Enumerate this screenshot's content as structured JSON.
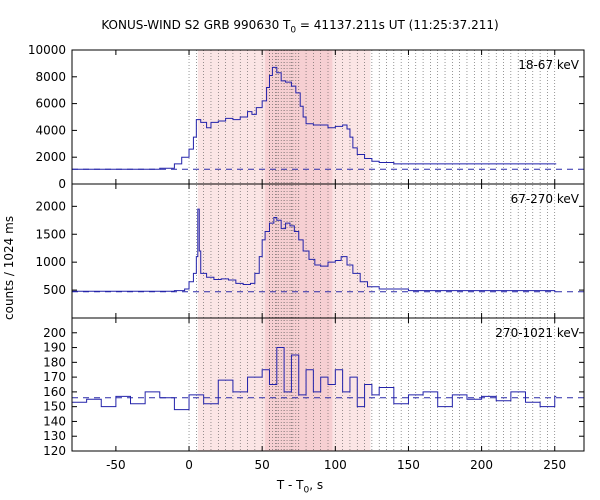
{
  "chart_data": {
    "type": "line",
    "title_prefix": "KONUS-WIND S2 GRB 990630 T",
    "title_sub": "0",
    "title_suffix": " = 41137.211s UT (11:25:37.211)",
    "ylabel": "counts / 1024 ms",
    "xlabel_prefix": "T - T",
    "xlabel_sub": "0",
    "xlabel_suffix": ", s",
    "xlim": [
      -80,
      270
    ],
    "xticks": [
      -50,
      0,
      50,
      100,
      150,
      200,
      250
    ],
    "shaded_intervals": [
      {
        "from": 6,
        "to": 124,
        "color": "#fbe5e5"
      },
      {
        "from": 52,
        "to": 98,
        "color": "#f6cfd2"
      }
    ],
    "panels": [
      {
        "name": "18-67 keV",
        "ylim": [
          0,
          10000
        ],
        "yticks": [
          0,
          2000,
          4000,
          6000,
          8000,
          10000
        ],
        "background": 1100,
        "points": [
          [
            -80,
            1100
          ],
          [
            -30,
            1100
          ],
          [
            -20,
            1180
          ],
          [
            -10,
            1500
          ],
          [
            -5,
            2000
          ],
          [
            0,
            2600
          ],
          [
            3,
            3500
          ],
          [
            5,
            4800
          ],
          [
            8,
            4600
          ],
          [
            12,
            4200
          ],
          [
            15,
            4600
          ],
          [
            20,
            4700
          ],
          [
            25,
            4900
          ],
          [
            30,
            4800
          ],
          [
            35,
            5000
          ],
          [
            40,
            5400
          ],
          [
            43,
            5200
          ],
          [
            46,
            5700
          ],
          [
            50,
            6200
          ],
          [
            53,
            7200
          ],
          [
            55,
            8100
          ],
          [
            57,
            8700
          ],
          [
            60,
            8300
          ],
          [
            63,
            7700
          ],
          [
            66,
            7600
          ],
          [
            70,
            7300
          ],
          [
            73,
            6800
          ],
          [
            76,
            5800
          ],
          [
            78,
            5000
          ],
          [
            80,
            4500
          ],
          [
            85,
            4400
          ],
          [
            90,
            4400
          ],
          [
            95,
            4200
          ],
          [
            100,
            4300
          ],
          [
            105,
            4400
          ],
          [
            108,
            4100
          ],
          [
            110,
            3500
          ],
          [
            112,
            2700
          ],
          [
            115,
            2200
          ],
          [
            120,
            1900
          ],
          [
            125,
            1700
          ],
          [
            130,
            1600
          ],
          [
            140,
            1500
          ],
          [
            160,
            1500
          ],
          [
            200,
            1500
          ],
          [
            230,
            1500
          ],
          [
            250,
            1500
          ]
        ]
      },
      {
        "name": "67-270 keV",
        "ylim": [
          0,
          2400
        ],
        "yticks": [
          500,
          1000,
          1500,
          2000
        ],
        "background": 470,
        "points": [
          [
            -80,
            480
          ],
          [
            -20,
            480
          ],
          [
            -10,
            490
          ],
          [
            -3,
            520
          ],
          [
            0,
            650
          ],
          [
            3,
            800
          ],
          [
            5,
            1100
          ],
          [
            6,
            1950
          ],
          [
            7,
            1200
          ],
          [
            8,
            800
          ],
          [
            12,
            730
          ],
          [
            17,
            690
          ],
          [
            22,
            700
          ],
          [
            27,
            680
          ],
          [
            32,
            620
          ],
          [
            37,
            600
          ],
          [
            42,
            620
          ],
          [
            45,
            800
          ],
          [
            48,
            1100
          ],
          [
            50,
            1400
          ],
          [
            52,
            1550
          ],
          [
            55,
            1700
          ],
          [
            58,
            1800
          ],
          [
            60,
            1750
          ],
          [
            63,
            1600
          ],
          [
            66,
            1700
          ],
          [
            69,
            1650
          ],
          [
            72,
            1550
          ],
          [
            75,
            1400
          ],
          [
            78,
            1200
          ],
          [
            82,
            1050
          ],
          [
            86,
            950
          ],
          [
            90,
            930
          ],
          [
            95,
            1000
          ],
          [
            100,
            1030
          ],
          [
            104,
            1100
          ],
          [
            108,
            950
          ],
          [
            112,
            800
          ],
          [
            117,
            650
          ],
          [
            122,
            560
          ],
          [
            130,
            520
          ],
          [
            150,
            490
          ],
          [
            250,
            470
          ]
        ]
      },
      {
        "name": "270-1021 keV",
        "ylim": [
          120,
          210
        ],
        "yticks": [
          120,
          130,
          140,
          150,
          160,
          170,
          180,
          190,
          200
        ],
        "background": 156,
        "points": [
          [
            -80,
            153
          ],
          [
            -70,
            155
          ],
          [
            -60,
            150
          ],
          [
            -50,
            157
          ],
          [
            -40,
            152
          ],
          [
            -30,
            160
          ],
          [
            -20,
            156
          ],
          [
            -10,
            148
          ],
          [
            0,
            158
          ],
          [
            10,
            152
          ],
          [
            20,
            168
          ],
          [
            30,
            160
          ],
          [
            40,
            170
          ],
          [
            50,
            175
          ],
          [
            55,
            165
          ],
          [
            60,
            190
          ],
          [
            65,
            160
          ],
          [
            70,
            185
          ],
          [
            75,
            158
          ],
          [
            80,
            175
          ],
          [
            85,
            160
          ],
          [
            90,
            170
          ],
          [
            95,
            165
          ],
          [
            100,
            175
          ],
          [
            105,
            160
          ],
          [
            110,
            170
          ],
          [
            115,
            150
          ],
          [
            120,
            165
          ],
          [
            125,
            158
          ],
          [
            130,
            163
          ],
          [
            140,
            152
          ],
          [
            150,
            158
          ],
          [
            160,
            160
          ],
          [
            170,
            150
          ],
          [
            180,
            158
          ],
          [
            190,
            155
          ],
          [
            200,
            157
          ],
          [
            210,
            154
          ],
          [
            220,
            160
          ],
          [
            230,
            153
          ],
          [
            240,
            150
          ],
          [
            250,
            157
          ]
        ]
      }
    ]
  }
}
